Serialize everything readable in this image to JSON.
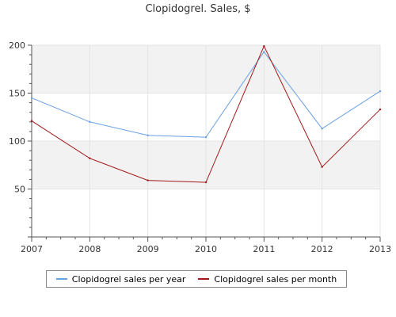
{
  "chart_data": {
    "type": "line",
    "title": "Clopidogrel. Sales, $",
    "xlabel": "",
    "ylabel": "",
    "x": [
      "2007",
      "2008",
      "2009",
      "2010",
      "2011",
      "2012",
      "2013"
    ],
    "ylim": [
      0,
      200
    ],
    "yticks": [
      50,
      100,
      150,
      200
    ],
    "grid": true,
    "legend_position": "bottom",
    "series": [
      {
        "name": "Clopidogrel sales per year",
        "color": "#6a9fe0",
        "values": [
          145,
          120,
          106,
          104,
          193,
          113,
          152
        ]
      },
      {
        "name": "Clopidogrel sales per month",
        "color": "#a01818",
        "values": [
          121,
          82,
          59,
          57,
          199,
          73,
          133
        ]
      }
    ]
  }
}
